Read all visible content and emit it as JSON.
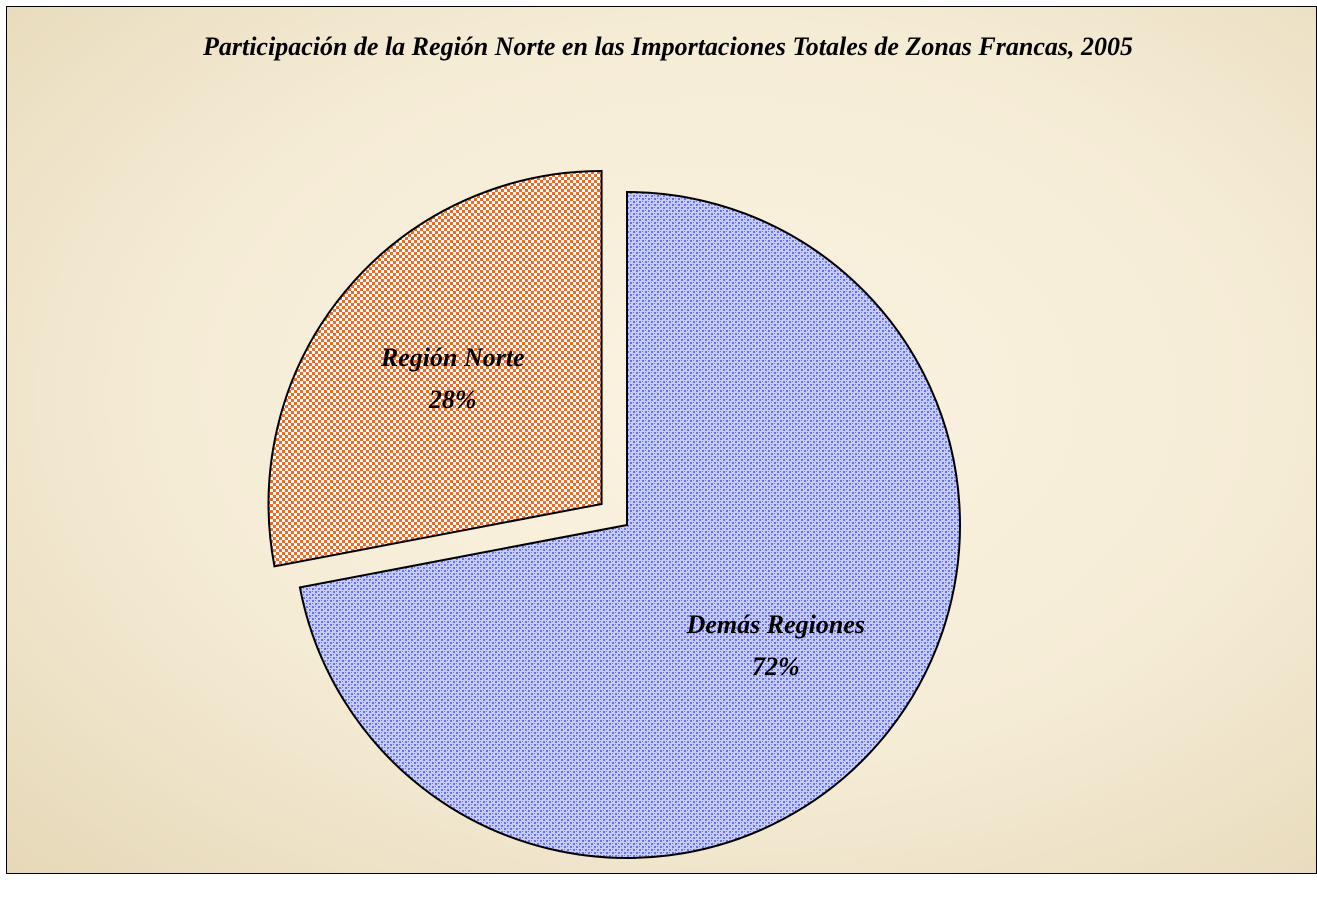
{
  "chart_data": {
    "type": "pie",
    "title": "Participación de la Región Norte en las Importaciones Totales de Zonas Francas,  2005",
    "categories": [
      "Demás Regiones",
      "Región Norte"
    ],
    "values": [
      72,
      28
    ],
    "value_labels": [
      "72%",
      "28%"
    ],
    "colors": [
      "#6472f0",
      "#ee6a28"
    ],
    "explode": [
      false,
      true
    ]
  }
}
